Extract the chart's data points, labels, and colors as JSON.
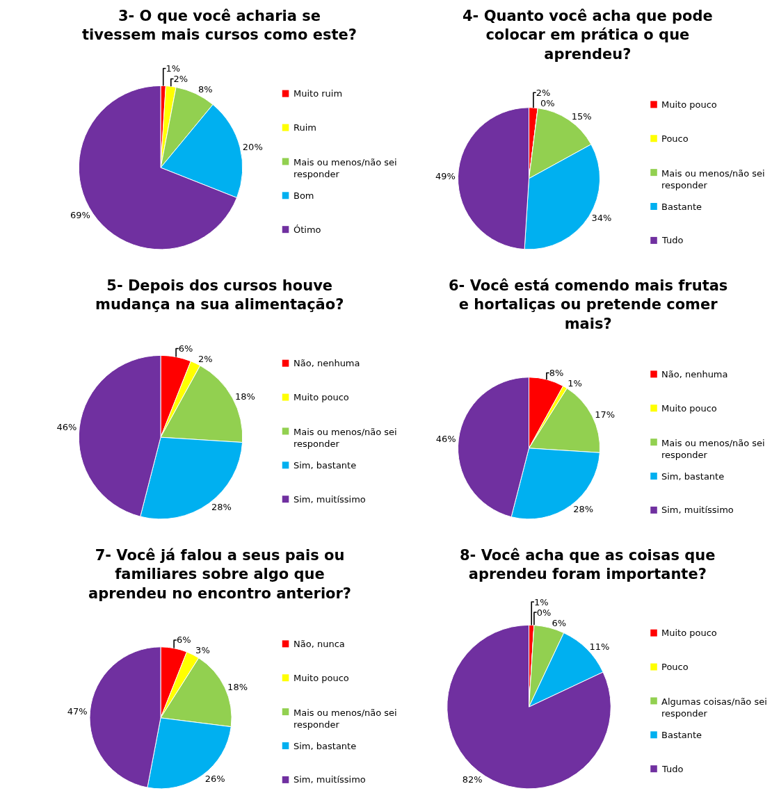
{
  "chart_data": [
    {
      "type": "pie",
      "title": "3- O que você acharia se tivessem mais cursos como este?",
      "categories": [
        "Muito ruim",
        "Ruim",
        "Mais ou menos/não sei responder",
        "Bom",
        "Ótimo"
      ],
      "values": [
        1,
        2,
        8,
        20,
        69
      ],
      "colors": [
        "#ff0000",
        "#ffff00",
        "#92d050",
        "#00b0f0",
        "#7030a0"
      ],
      "value_labels": [
        "1%",
        "2%",
        "8%",
        "20%",
        "69%"
      ],
      "legend": "right"
    },
    {
      "type": "pie",
      "title": "4- Quanto você acha que pode colocar em prática o que aprendeu?",
      "categories": [
        "Muito pouco",
        "Pouco",
        "Mais ou menos/não sei responder",
        "Bastante",
        "Tudo"
      ],
      "values": [
        2,
        0,
        15,
        34,
        49
      ],
      "colors": [
        "#ff0000",
        "#ffff00",
        "#92d050",
        "#00b0f0",
        "#7030a0"
      ],
      "value_labels": [
        "2%",
        "0%",
        "15%",
        "34%",
        "49%"
      ],
      "legend": "right"
    },
    {
      "type": "pie",
      "title": "5- Depois dos cursos houve mudança na sua alimentação?",
      "categories": [
        "Não, nenhuma",
        "Muito pouco",
        "Mais ou menos/não sei responder",
        "Sim, bastante",
        "Sim, muitíssimo"
      ],
      "values": [
        6,
        2,
        18,
        28,
        46
      ],
      "colors": [
        "#ff0000",
        "#ffff00",
        "#92d050",
        "#00b0f0",
        "#7030a0"
      ],
      "value_labels": [
        "6%",
        "2%",
        "18%",
        "28%",
        "46%"
      ],
      "legend": "right"
    },
    {
      "type": "pie",
      "title": "6- Você está comendo mais frutas e hortaliças ou pretende comer mais?",
      "categories": [
        "Não, nenhuma",
        "Muito pouco",
        "Mais ou menos/não sei responder",
        "Sim, bastante",
        "Sim, muitíssimo"
      ],
      "values": [
        8,
        1,
        17,
        28,
        46
      ],
      "colors": [
        "#ff0000",
        "#ffff00",
        "#92d050",
        "#00b0f0",
        "#7030a0"
      ],
      "value_labels": [
        "8%",
        "1%",
        "17%",
        "28%",
        "46%"
      ],
      "legend": "right"
    },
    {
      "type": "pie",
      "title": "7- Você já falou a seus pais ou familiares sobre algo que aprendeu no encontro anterior?",
      "categories": [
        "Não, nunca",
        "Muito pouco",
        "Mais ou menos/não sei responder",
        "Sim, bastante",
        "Sim, muitíssimo"
      ],
      "values": [
        6,
        3,
        18,
        26,
        47
      ],
      "colors": [
        "#ff0000",
        "#ffff00",
        "#92d050",
        "#00b0f0",
        "#7030a0"
      ],
      "value_labels": [
        "6%",
        "3%",
        "18%",
        "26%",
        "47%"
      ],
      "legend": "right"
    },
    {
      "type": "pie",
      "title": "8- Você acha que as coisas que aprendeu foram importante?",
      "categories": [
        "Muito pouco",
        "Pouco",
        "Algumas coisas/não sei responder",
        "Bastante",
        "Tudo"
      ],
      "values": [
        1,
        0,
        6,
        11,
        82
      ],
      "colors": [
        "#ff0000",
        "#ffff00",
        "#92d050",
        "#00b0f0",
        "#7030a0"
      ],
      "value_labels": [
        "1%",
        "0%",
        "6%",
        "11%",
        "82%"
      ],
      "legend": "right"
    }
  ]
}
